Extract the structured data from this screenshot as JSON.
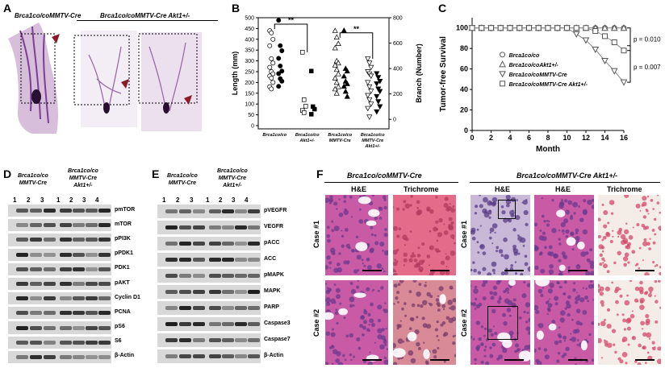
{
  "panels": {
    "A": {
      "letter": "A",
      "left_label": "Brca1co/coMMTV-Cre",
      "right_label": "Brca1co/coMMTV-Cre Akt1+/-"
    },
    "B": {
      "letter": "B",
      "ylabel_left": "Length (mm)",
      "ylabel_right": "Branch (Number)",
      "sig1": "**",
      "sig2": "**"
    },
    "C": {
      "letter": "C",
      "p1": "p = 0.010",
      "p2": "p = 0.007"
    },
    "D": {
      "letter": "D",
      "group1": "Brca1co/co\nMMTV-Cre",
      "group2": "Brca1co/co\nMMTV-Cre\nAkt1+/-",
      "lanes": [
        "1",
        "2",
        "3",
        "1",
        "2",
        "3",
        "4"
      ],
      "rows": [
        "pmTOR",
        "mTOR",
        "pPI3K",
        "pPDK1",
        "PDK1",
        "pAKT",
        "Cyclin D1",
        "PCNA",
        "pS6",
        "S6",
        "β-Actin"
      ]
    },
    "E": {
      "letter": "E",
      "group1": "Brca1co/co\nMMTV-Cre",
      "group2": "Brca1co/co\nMMTV-Cre\nAkt1+/-",
      "lanes": [
        "1",
        "2",
        "3",
        "1",
        "2",
        "3",
        "4"
      ],
      "rows": [
        "pVEGFR",
        "VEGFR",
        "pACC",
        "ACC",
        "pMAPK",
        "MAPK",
        "PARP",
        "Caspase3",
        "Caspase7",
        "β-Actin"
      ]
    },
    "F": {
      "letter": "F",
      "left_title": "Brca1co/coMMTV-Cre",
      "right_title": "Brca1co/coMMTV-Cre Akt1+/-",
      "col_he": "H&E",
      "col_tri": "Trichrome",
      "case1": "Case #1",
      "case2": "Case #2"
    }
  },
  "chart_data": [
    {
      "type": "scatter",
      "title": "",
      "ylabel": "Length (mm)",
      "y2label": "Branch (Number)",
      "ylim": [
        -15,
        500
      ],
      "y2lim": [
        -75,
        800
      ],
      "yticks": [
        0,
        50,
        100,
        150,
        200,
        250,
        300,
        350,
        400,
        450,
        500
      ],
      "y2ticks": [
        0,
        200,
        400,
        600,
        800
      ],
      "categories": [
        "Brca1co/co",
        "Brca1co/co Akt1+/-",
        "Brca1co/co MMTV-Cre",
        "Brca1co/co MMTV-Cre Akt1+/-"
      ],
      "series": [
        {
          "name": "length",
          "marker": "open",
          "values": [
            [
              440,
              430,
              400,
              370,
              310,
              290,
              270,
              250,
              240,
              230,
              220,
              200,
              180,
              170
            ],
            [
              340,
              120,
              90,
              70,
              60
            ],
            [
              440,
              410,
              380,
              360,
              300,
              290,
              280,
              260,
              240,
              220,
              200,
              180,
              170,
              150
            ],
            [
              310,
              290,
              270,
              250,
              240,
              230,
              200,
              180,
              160,
              140,
              120,
              100,
              80,
              40
            ]
          ]
        },
        {
          "name": "branch",
          "marker": "filled",
          "values": [
            [
              780,
              580,
              540,
              480,
              420,
              380,
              360,
              320,
              300,
              260
            ],
            [
              380,
              100,
              80,
              40
            ],
            [
              700,
              400,
              380,
              340,
              300,
              280,
              260,
              220,
              180
            ],
            [
              360,
              330,
              300,
              280,
              240,
              220,
              180,
              140,
              100,
              60
            ]
          ]
        }
      ]
    },
    {
      "type": "line",
      "title": "",
      "xlabel": "Month",
      "ylabel": "Tumor-free Survival",
      "xlim": [
        0,
        16
      ],
      "ylim": [
        0,
        110
      ],
      "xticks": [
        0,
        2,
        4,
        6,
        8,
        10,
        12,
        14,
        16
      ],
      "yticks": [
        0,
        20,
        40,
        60,
        80,
        100
      ],
      "series": [
        {
          "name": "Brca1co/co",
          "marker": "circle",
          "x": [
            0,
            1,
            2,
            3,
            4,
            5,
            6,
            7,
            8,
            9,
            10,
            11,
            12,
            13,
            14,
            15,
            16
          ],
          "y": [
            100,
            100,
            100,
            100,
            100,
            100,
            100,
            100,
            100,
            100,
            100,
            100,
            100,
            100,
            100,
            100,
            100
          ]
        },
        {
          "name": "Brca1co/coAkt1+/-",
          "marker": "triangle-up",
          "x": [
            0,
            1,
            2,
            3,
            4,
            5,
            6,
            7,
            8,
            9,
            10,
            11,
            12,
            13,
            14,
            15,
            16
          ],
          "y": [
            100,
            100,
            100,
            100,
            100,
            100,
            100,
            100,
            100,
            100,
            100,
            100,
            100,
            100,
            100,
            100,
            100
          ]
        },
        {
          "name": "Brca1co/coMMTV-Cre",
          "marker": "triangle-down",
          "x": [
            0,
            1,
            2,
            3,
            4,
            5,
            6,
            7,
            8,
            9,
            10,
            11,
            12,
            13,
            14,
            15,
            16
          ],
          "y": [
            100,
            100,
            100,
            100,
            100,
            100,
            100,
            100,
            100,
            100,
            100,
            94,
            88,
            79,
            68,
            58,
            47
          ]
        },
        {
          "name": "Brca1co/coMMTV-Cre Akt1+/-",
          "marker": "square",
          "x": [
            0,
            1,
            2,
            3,
            4,
            5,
            6,
            7,
            8,
            9,
            10,
            11,
            12,
            13,
            14,
            15,
            16
          ],
          "y": [
            100,
            100,
            100,
            100,
            100,
            100,
            100,
            100,
            100,
            100,
            100,
            100,
            100,
            97,
            92,
            86,
            78
          ]
        }
      ]
    }
  ],
  "colors": {
    "whole_mount": "#8a3fa0",
    "he_pink": "#c95aa5",
    "he_purple": "#6b3a8e",
    "trichrome_red": "#d6486a",
    "arrow": "#8c1a2a"
  }
}
